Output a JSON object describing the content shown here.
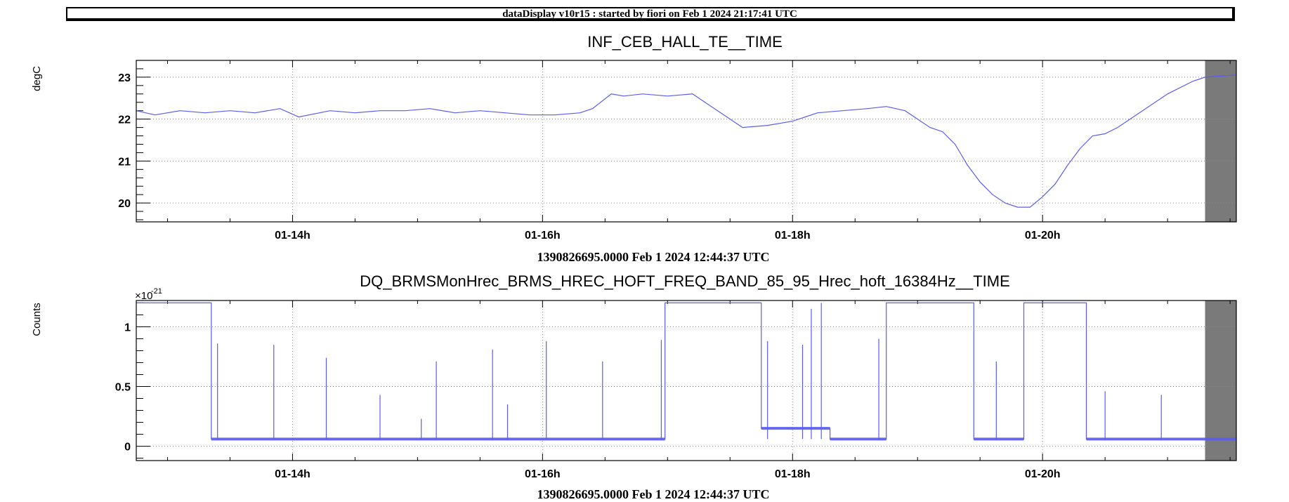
{
  "header": {
    "text": "dataDisplay v10r15 : started by fiori on Feb  1 2024 21:17:41 UTC"
  },
  "colors": {
    "series": "#5a5cf0",
    "frame": "#000000",
    "grid": "#8a8a8a",
    "shade": "#7a7a7a"
  },
  "chart_data": [
    {
      "type": "line",
      "title": "INF_CEB_HALL_TE__TIME",
      "ylabel": "degC",
      "xlabel": "1390826695.0000 Feb 1 2024 12:44:37 UTC",
      "x_unit": "hours (UTC, Feb 1 2024)",
      "xlim": [
        12.75,
        21.55
      ],
      "ylim": [
        19.55,
        23.4
      ],
      "y_ticks": [
        "20",
        "21",
        "22",
        "23"
      ],
      "y_tick_values": [
        20,
        21,
        22,
        23
      ],
      "x_ticks": [
        "01-14h",
        "01-16h",
        "01-18h",
        "01-20h"
      ],
      "x_tick_values": [
        14,
        16,
        18,
        20
      ],
      "grid": true,
      "shaded_region": [
        21.3,
        21.55
      ],
      "series": [
        {
          "x": [
            12.75,
            12.9,
            13.1,
            13.3,
            13.5,
            13.7,
            13.9,
            14.05,
            14.3,
            14.5,
            14.7,
            14.9,
            15.1,
            15.3,
            15.5,
            15.7,
            15.9,
            16.1,
            16.3,
            16.4,
            16.55,
            16.65,
            16.8,
            17.0,
            17.2,
            17.3,
            17.4,
            17.5,
            17.6,
            17.8,
            18.0,
            18.2,
            18.4,
            18.6,
            18.75,
            18.9,
            19.0,
            19.1,
            19.2,
            19.3,
            19.4,
            19.5,
            19.6,
            19.7,
            19.8,
            19.9,
            20.0,
            20.1,
            20.2,
            20.3,
            20.4,
            20.5,
            20.6,
            20.8,
            21.0,
            21.2,
            21.3,
            21.55
          ],
          "y": [
            22.2,
            22.1,
            22.2,
            22.15,
            22.2,
            22.15,
            22.25,
            22.05,
            22.2,
            22.15,
            22.2,
            22.2,
            22.25,
            22.15,
            22.2,
            22.15,
            22.1,
            22.1,
            22.15,
            22.25,
            22.6,
            22.55,
            22.6,
            22.55,
            22.6,
            22.4,
            22.2,
            22.0,
            21.8,
            21.85,
            21.95,
            22.15,
            22.2,
            22.25,
            22.3,
            22.2,
            22.0,
            21.8,
            21.7,
            21.4,
            20.9,
            20.5,
            20.2,
            20.0,
            19.9,
            19.9,
            20.15,
            20.45,
            20.9,
            21.3,
            21.6,
            21.65,
            21.8,
            22.2,
            22.6,
            22.9,
            23.0,
            23.05
          ]
        }
      ]
    },
    {
      "type": "line",
      "title": "DQ_BRMSMonHrec_BRMS_HREC_HOFT_FREQ_BAND_85_95_Hrec_hoft_16384Hz__TIME",
      "ylabel": "Counts",
      "xlabel": "1390826695.0000 Feb 1 2024 12:44:37 UTC",
      "exponent": "×10",
      "exponent_power": "-21",
      "x_unit": "hours (UTC, Feb 1 2024)",
      "xlim": [
        12.75,
        21.55
      ],
      "ylim": [
        -0.12,
        1.22
      ],
      "y_ticks": [
        "0",
        "0.5",
        "1"
      ],
      "y_tick_values": [
        0,
        0.5,
        1
      ],
      "x_ticks": [
        "01-14h",
        "01-16h",
        "01-18h",
        "01-20h"
      ],
      "x_tick_values": [
        14,
        16,
        18,
        20
      ],
      "grid": true,
      "shaded_region": [
        21.3,
        21.55
      ],
      "saturation_level": 1.2,
      "series": [
        {
          "segments": [
            {
              "x0": 12.75,
              "x1": 13.35,
              "level": 1.2
            },
            {
              "x0": 13.35,
              "x1": 16.98,
              "level": 0.06
            },
            {
              "x0": 16.98,
              "x1": 17.75,
              "level": 1.2
            },
            {
              "x0": 17.75,
              "x1": 18.3,
              "level": 0.15
            },
            {
              "x0": 18.3,
              "x1": 18.75,
              "level": 0.06
            },
            {
              "x0": 18.75,
              "x1": 18.85,
              "level": 1.2
            },
            {
              "x0": 18.85,
              "x1": 19.45,
              "level": 1.2
            },
            {
              "x0": 19.45,
              "x1": 19.85,
              "level": 0.06
            },
            {
              "x0": 19.85,
              "x1": 20.35,
              "level": 1.2
            },
            {
              "x0": 20.35,
              "x1": 21.55,
              "level": 0.06
            }
          ],
          "spikes": [
            {
              "x": 13.4,
              "y": 0.86
            },
            {
              "x": 13.85,
              "y": 0.85
            },
            {
              "x": 14.27,
              "y": 0.74
            },
            {
              "x": 14.7,
              "y": 0.43
            },
            {
              "x": 15.03,
              "y": 0.23
            },
            {
              "x": 15.15,
              "y": 0.71
            },
            {
              "x": 15.6,
              "y": 0.81
            },
            {
              "x": 15.72,
              "y": 0.35
            },
            {
              "x": 16.03,
              "y": 0.88
            },
            {
              "x": 16.48,
              "y": 0.71
            },
            {
              "x": 16.95,
              "y": 0.89
            },
            {
              "x": 17.8,
              "y": 0.88
            },
            {
              "x": 18.08,
              "y": 0.85
            },
            {
              "x": 18.15,
              "y": 1.15
            },
            {
              "x": 18.23,
              "y": 1.2
            },
            {
              "x": 18.69,
              "y": 0.9
            },
            {
              "x": 19.63,
              "y": 0.71
            },
            {
              "x": 20.5,
              "y": 0.46
            },
            {
              "x": 20.95,
              "y": 0.43
            }
          ]
        }
      ]
    }
  ]
}
